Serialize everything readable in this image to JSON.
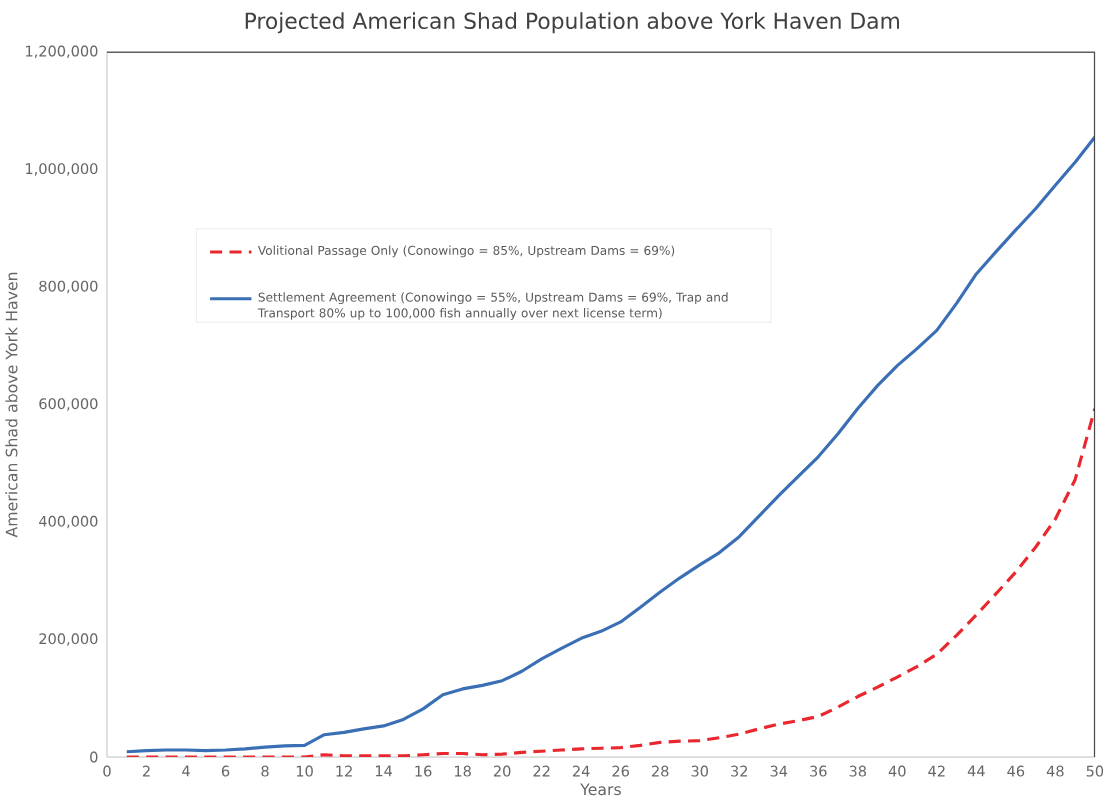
{
  "chart_data": {
    "type": "line",
    "title": "Projected American Shad Population above York Haven Dam",
    "xlabel": "Years",
    "ylabel": "American Shad above York Haven",
    "x": [
      1,
      2,
      3,
      4,
      5,
      6,
      7,
      8,
      9,
      10,
      11,
      12,
      13,
      14,
      15,
      16,
      17,
      18,
      19,
      20,
      21,
      22,
      23,
      24,
      25,
      26,
      27,
      28,
      29,
      30,
      31,
      32,
      33,
      34,
      35,
      36,
      37,
      38,
      39,
      40,
      41,
      42,
      43,
      44,
      45,
      46,
      47,
      48,
      49,
      50
    ],
    "series": [
      {
        "name": "Volitional Passage Only (Conowingo = 85%, Upstream Dams = 69%)",
        "color": "#e8282e",
        "line_style": "dashed",
        "values": [
          0,
          0,
          0,
          0,
          0,
          0,
          0,
          0,
          0,
          0,
          4000,
          2000,
          2000,
          2000,
          2000,
          4000,
          6000,
          6000,
          4000,
          5000,
          8000,
          10000,
          12000,
          14000,
          15000,
          16000,
          20000,
          25000,
          27000,
          28000,
          33000,
          39000,
          48000,
          56000,
          62000,
          69000,
          85000,
          103000,
          119000,
          136000,
          154000,
          175000,
          207000,
          242000,
          278000,
          315000,
          357000,
          405000,
          472000,
          593000
        ]
      },
      {
        "name": "Settlement Agreement (Conowingo = 55%, Upstream Dams = 69%, Trap and Transport 80% up to 100,000 fish annually over next license term)",
        "color": "#3a6fb5",
        "line_style": "solid",
        "values": [
          9000,
          11000,
          12000,
          12000,
          11000,
          12000,
          14000,
          17000,
          19000,
          20000,
          38000,
          42000,
          48000,
          53000,
          64000,
          82000,
          106000,
          116000,
          122000,
          130000,
          146000,
          167000,
          185000,
          202000,
          214000,
          230000,
          255000,
          281000,
          305000,
          327000,
          348000,
          375000,
          410000,
          445000,
          478000,
          511000,
          550000,
          593000,
          632000,
          666000,
          695000,
          726000,
          772000,
          822000,
          860000,
          897000,
          933000,
          973000,
          1012000,
          1055000
        ]
      }
    ],
    "xlim": [
      0,
      50
    ],
    "xticks": [
      0,
      2,
      4,
      6,
      8,
      10,
      12,
      14,
      16,
      18,
      20,
      22,
      24,
      26,
      28,
      30,
      32,
      34,
      36,
      38,
      40,
      42,
      44,
      46,
      48,
      50
    ],
    "ylim": [
      0,
      1200000
    ],
    "yticks": [
      {
        "value": 0,
        "label": "0"
      },
      {
        "value": 200000,
        "label": "200,000"
      },
      {
        "value": 400000,
        "label": "400,000"
      },
      {
        "value": 600000,
        "label": "600,000"
      },
      {
        "value": 800000,
        "label": "800,000"
      },
      {
        "value": 1000000,
        "label": "1,000,000"
      },
      {
        "value": 1200000,
        "label": "1,200,000"
      }
    ],
    "legend": "left",
    "grid": false,
    "marker": "none"
  }
}
